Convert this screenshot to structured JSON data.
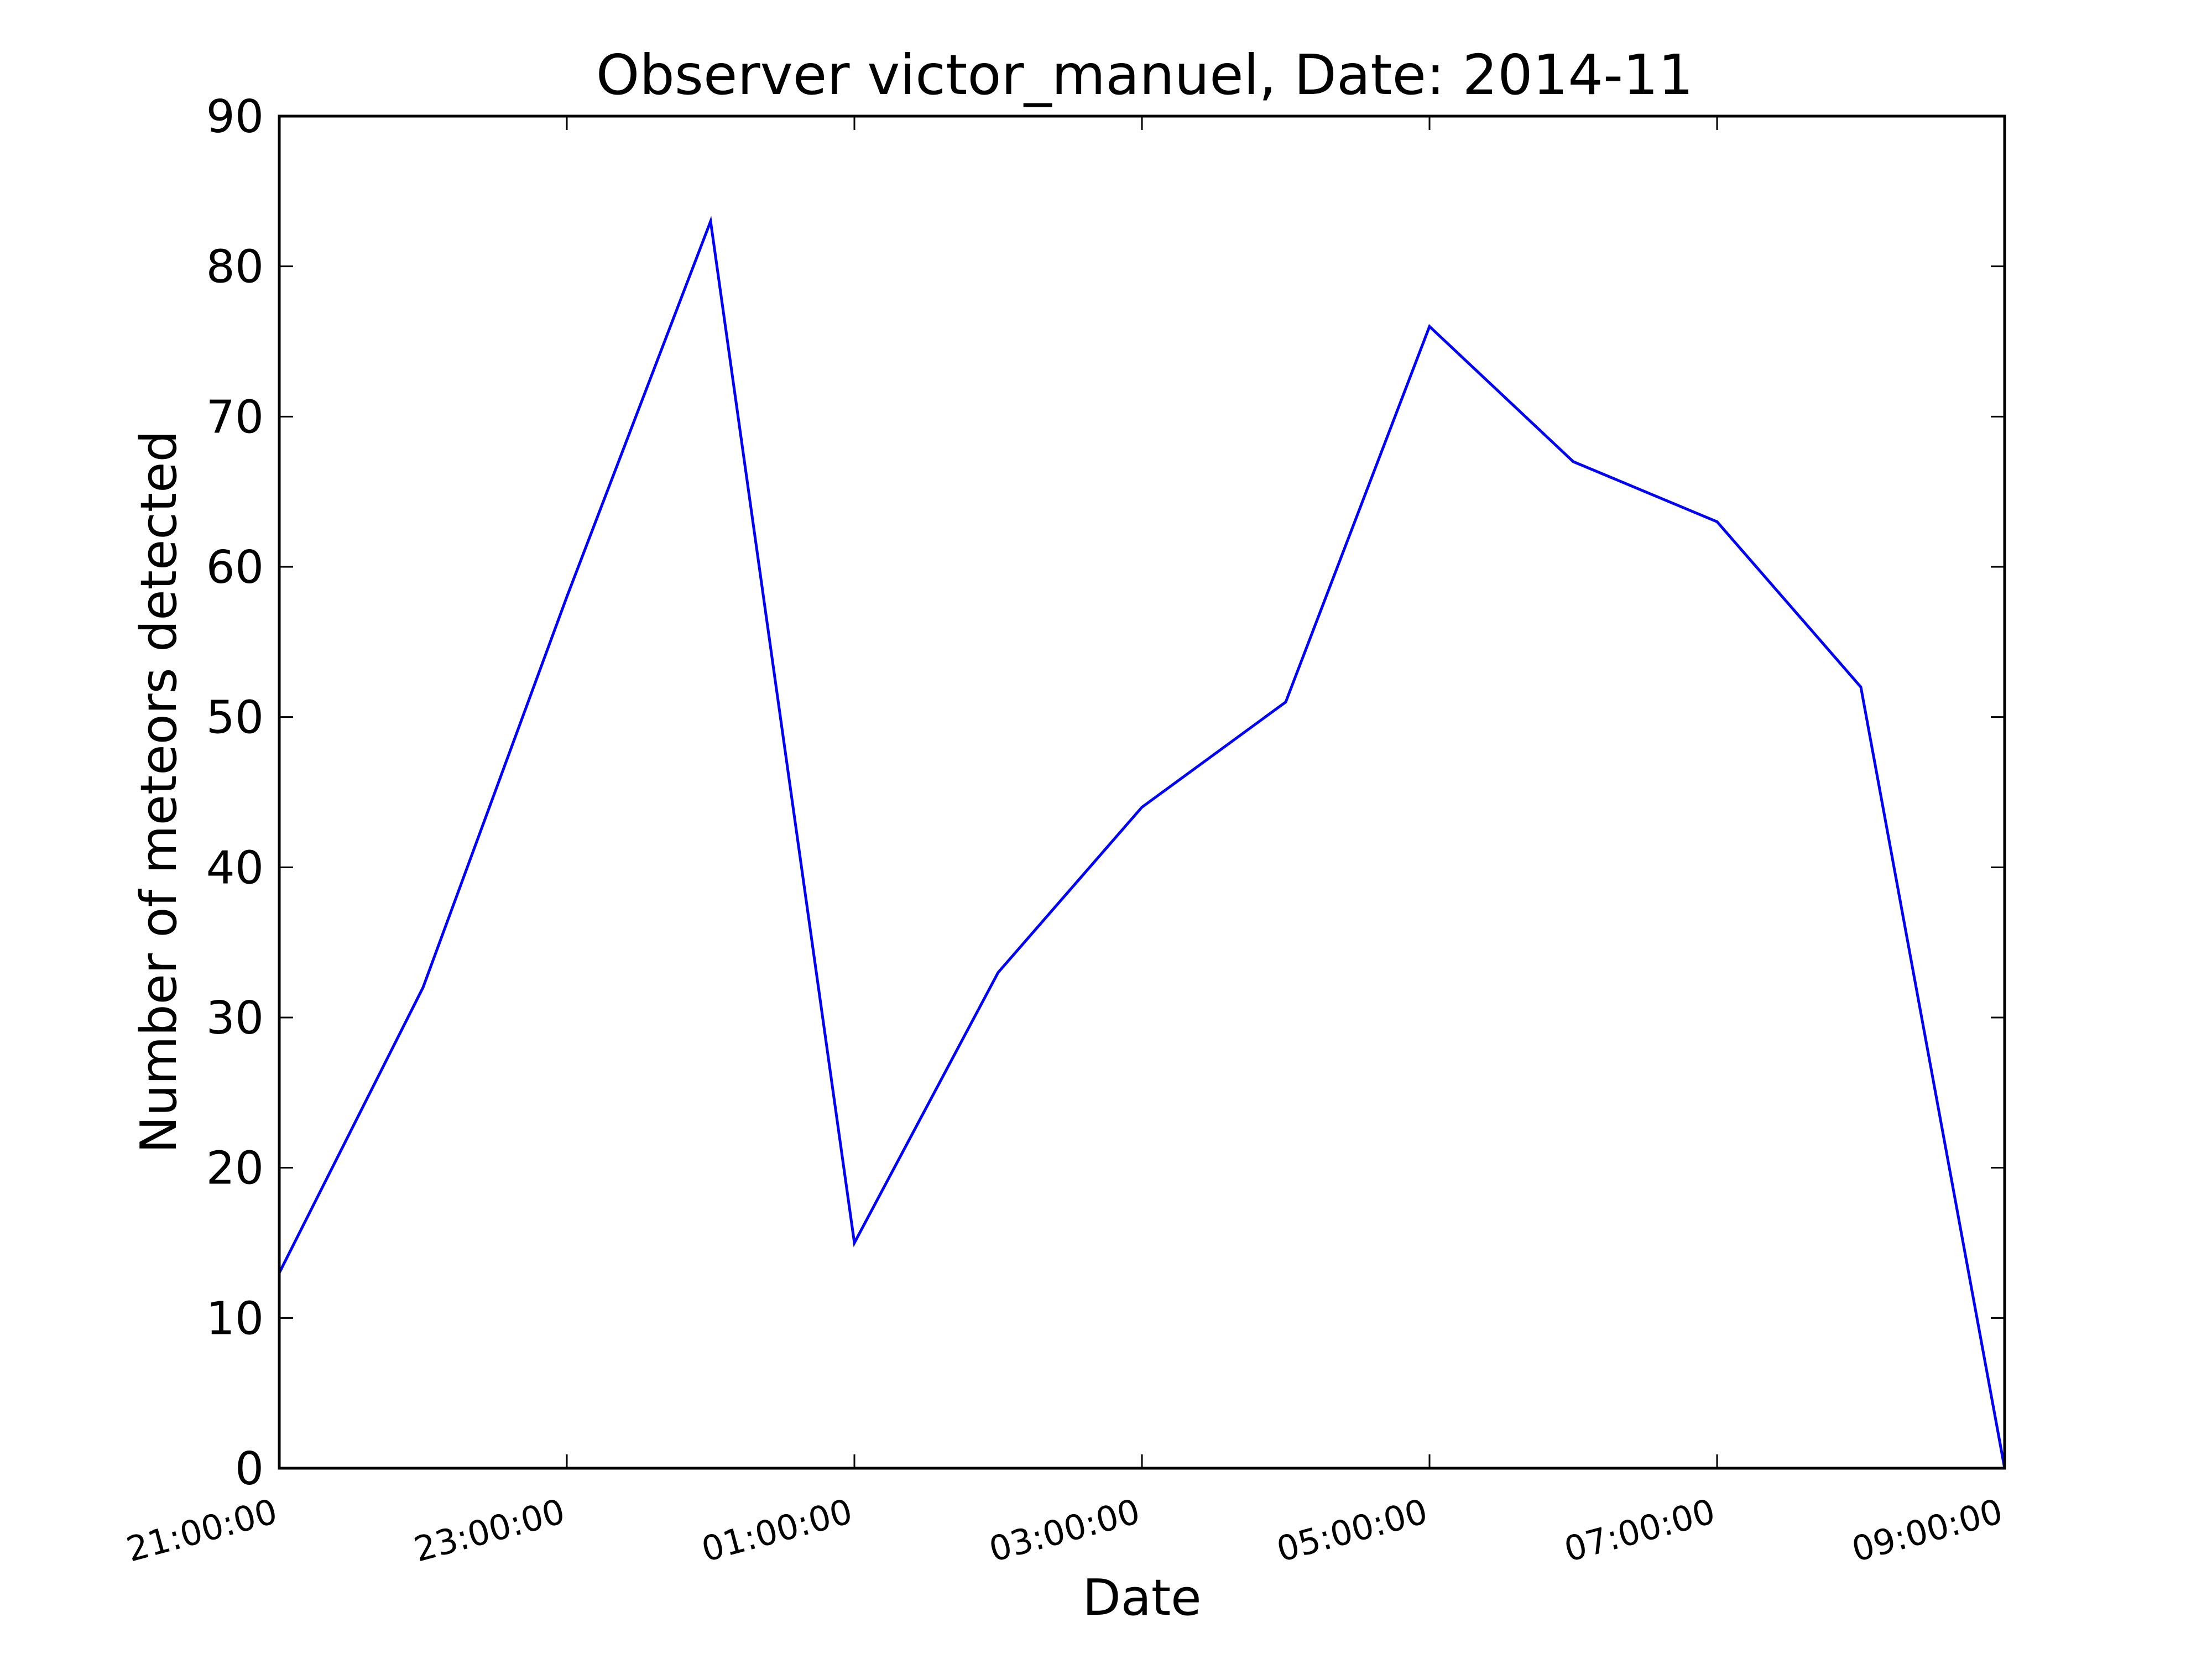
{
  "chart_data": {
    "type": "line",
    "title": "Observer victor_manuel, Date: 2014-11",
    "xlabel": "Date",
    "ylabel": "Number of meteors detected",
    "x": [
      "21:00:00",
      "22:00:00",
      "23:00:00",
      "00:00:00",
      "01:00:00",
      "02:00:00",
      "03:00:00",
      "04:00:00",
      "05:00:00",
      "06:00:00",
      "07:00:00",
      "08:00:00",
      "09:00:00"
    ],
    "x_tick_labels": [
      "21:00:00",
      "23:00:00",
      "01:00:00",
      "03:00:00",
      "05:00:00",
      "07:00:00",
      "09:00:00"
    ],
    "series": [
      {
        "values": [
          13,
          32,
          58,
          83,
          15,
          33,
          44,
          51,
          76,
          67,
          63,
          52,
          0
        ],
        "color": "#0000ff"
      }
    ],
    "ylim": [
      0,
      90
    ],
    "y_ticks": [
      0,
      10,
      20,
      30,
      40,
      50,
      60,
      70,
      80,
      90
    ],
    "grid": false,
    "legend": "none"
  }
}
